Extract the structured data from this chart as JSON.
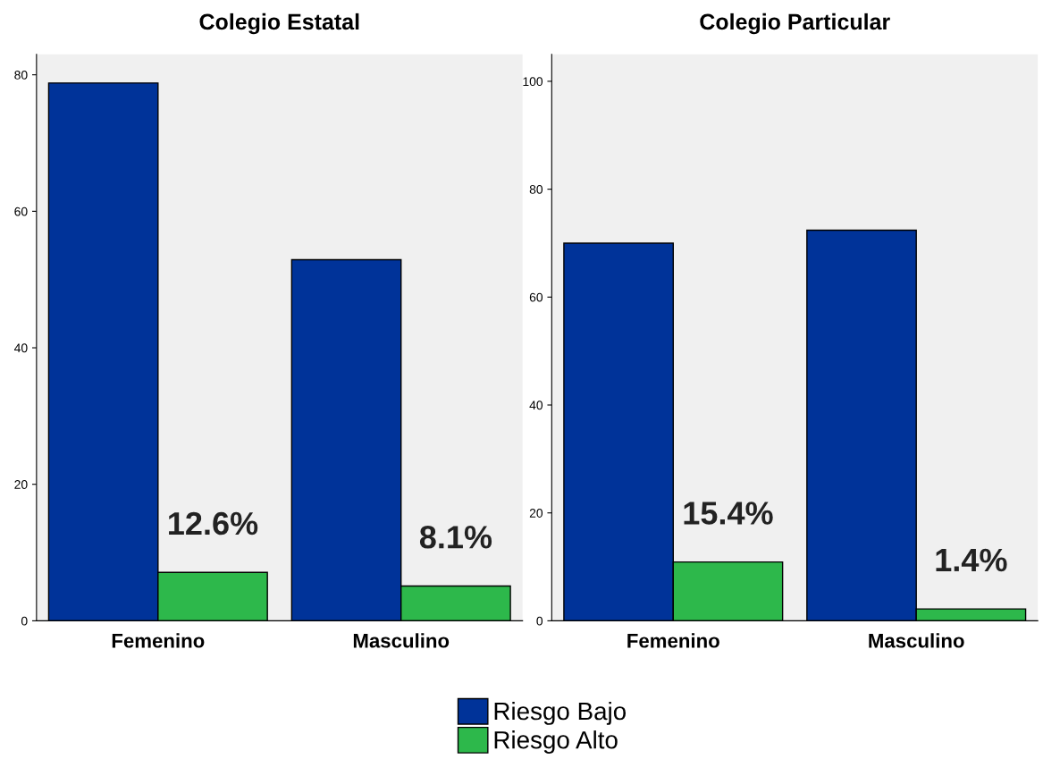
{
  "chart_data": [
    {
      "type": "bar",
      "title": "Colegio Estatal",
      "categories": [
        "Femenino",
        "Masculino"
      ],
      "ylim": [
        0,
        83
      ],
      "yticks": [
        0,
        20,
        40,
        60,
        80
      ],
      "grid": false,
      "legend": "bottom",
      "series": [
        {
          "name": "Riesgo Bajo",
          "color": "#003399",
          "values": [
            78.8,
            52.9
          ]
        },
        {
          "name": "Riesgo Alto",
          "color": "#2db84b",
          "values": [
            7.1,
            5.1
          ]
        }
      ],
      "annotations": [
        {
          "text": "12.6%",
          "x": "Femenino",
          "y": 7.1
        },
        {
          "text": "8.1%",
          "x": "Masculino",
          "y": 5.1
        }
      ]
    },
    {
      "type": "bar",
      "title": "Colegio Particular",
      "categories": [
        "Femenino",
        "Masculino"
      ],
      "ylim": [
        0,
        105
      ],
      "yticks": [
        0,
        20,
        40,
        60,
        80,
        100
      ],
      "grid": false,
      "series": [
        {
          "color": "#003399",
          "values": [
            70.0,
            72.4
          ]
        },
        {
          "color": "#2db84b",
          "values": [
            10.9,
            2.2
          ]
        }
      ],
      "annotations": [
        {
          "text": "15.4%",
          "x": "Femenino",
          "y": 10.9
        },
        {
          "text": "1.4%",
          "x": "Masculino",
          "y": 2.2
        }
      ]
    }
  ]
}
